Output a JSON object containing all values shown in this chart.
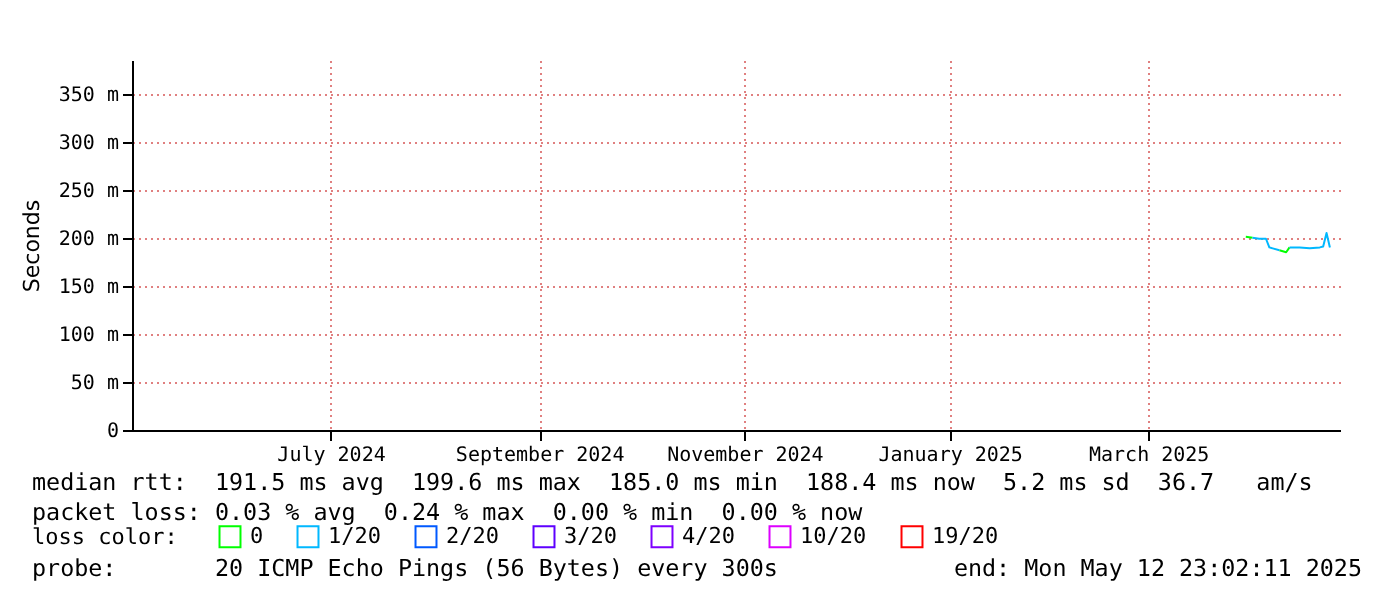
{
  "chart_data": {
    "type": "line",
    "ylabel": "Seconds",
    "legend_title": "loss color:",
    "annotations": [
      "median rtt:  191.5 ms avg  199.6 ms max  185.0 ms min  188.4 ms now  5.2 ms sd  36.7   am/s",
      "packet loss: 0.03 % avg  0.24 % max  0.00 % min  0.00 % now",
      "probe:       20 ICMP Echo Pings (56 Bytes) every 300s",
      "end: Mon May 12 23:02:11 2025"
    ],
    "x": [
      "2025-04-14",
      "2025-04-16",
      "2025-04-18",
      "2025-04-20",
      "2025-04-21",
      "2025-04-22",
      "2025-04-24",
      "2025-04-26",
      "2025-04-27",
      "2025-04-30",
      "2025-05-03",
      "2025-05-06",
      "2025-05-07",
      "2025-05-08",
      "2025-05-09"
    ],
    "series": [
      {
        "name": "0",
        "color": "#00ff00",
        "values": [
          201,
          200,
          null,
          null,
          null,
          null,
          187,
          185,
          190,
          null,
          null,
          null,
          null,
          null,
          null
        ]
      },
      {
        "name": "1/20",
        "color": "#00b8ff",
        "values": [
          null,
          200,
          199,
          199,
          190,
          189,
          187,
          null,
          190,
          190,
          189,
          190,
          191,
          205,
          190
        ]
      },
      {
        "name": "2/20",
        "color": "#0059ff",
        "values": [
          null,
          null,
          null,
          null,
          null,
          null,
          null,
          null,
          null,
          null,
          null,
          null,
          null,
          null,
          null
        ]
      },
      {
        "name": "3/20",
        "color": "#5e00ff",
        "values": [
          null,
          null,
          null,
          null,
          null,
          null,
          null,
          null,
          null,
          null,
          null,
          null,
          null,
          null,
          null
        ]
      },
      {
        "name": "4/20",
        "color": "#7e00ff",
        "values": [
          null,
          null,
          null,
          null,
          null,
          null,
          null,
          null,
          null,
          null,
          null,
          null,
          null,
          null,
          null
        ]
      },
      {
        "name": "10/20",
        "color": "#dd00ff",
        "values": [
          null,
          null,
          null,
          null,
          null,
          null,
          null,
          null,
          null,
          null,
          null,
          null,
          null,
          null,
          null
        ]
      },
      {
        "name": "19/20",
        "color": "#ff0000",
        "values": [
          null,
          null,
          null,
          null,
          null,
          null,
          null,
          null,
          null,
          null,
          null,
          null,
          null,
          null,
          null
        ]
      }
    ],
    "xlim": [
      "2024-05-18",
      "2025-05-12"
    ],
    "xticks": [
      {
        "value": "2024-07-16",
        "label": "July 2024"
      },
      {
        "value": "2024-09-16",
        "label": "September 2024"
      },
      {
        "value": "2024-11-16",
        "label": "November 2024"
      },
      {
        "value": "2025-01-16",
        "label": "January 2025"
      },
      {
        "value": "2025-03-16",
        "label": "March 2025"
      }
    ],
    "ylim": [
      0,
      385
    ],
    "yticks": [
      0,
      {
        "value": 50,
        "label": "50 m"
      },
      {
        "value": 100,
        "label": "100 m"
      },
      {
        "value": 150,
        "label": "150 m"
      },
      {
        "value": 200,
        "label": "200 m"
      },
      {
        "value": 250,
        "label": "250 m"
      },
      {
        "value": 300,
        "label": "300 m"
      },
      {
        "value": 350,
        "label": "350 m"
      }
    ],
    "grid": true,
    "legend": "bottom",
    "marker": "none",
    "line_style": "solid"
  }
}
